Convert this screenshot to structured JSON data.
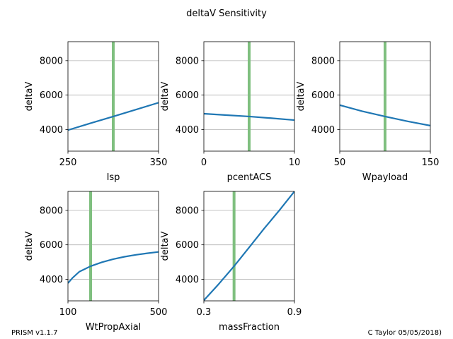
{
  "figure": {
    "title": "deltaV Sensitivity",
    "footer_left": "PRISM v1.1.7",
    "footer_right": "C Taylor 05/05/2018)"
  },
  "colors": {
    "line": "#1f77b4",
    "marker": "#7fbf7f",
    "grid": "#b0b0b0"
  },
  "chart_data": [
    {
      "type": "line",
      "xlabel": "Isp",
      "ylabel": "deltaV",
      "xlim": [
        250,
        350
      ],
      "ylim": [
        2750,
        9100
      ],
      "xticks": [
        "250",
        "350"
      ],
      "yticks": [
        "4000",
        "6000",
        "8000"
      ],
      "grid": "y",
      "marker_x": 300,
      "x": [
        250,
        275,
        300,
        325,
        350
      ],
      "y": [
        3970,
        4370,
        4760,
        5160,
        5560
      ]
    },
    {
      "type": "line",
      "xlabel": "pcentACS",
      "ylabel": "deltaV",
      "xlim": [
        0,
        10
      ],
      "ylim": [
        2750,
        9100
      ],
      "xticks": [
        "0",
        "10"
      ],
      "yticks": [
        "4000",
        "6000",
        "8000"
      ],
      "grid": "y",
      "marker_x": 5,
      "x": [
        0,
        2.5,
        5,
        7.5,
        10
      ],
      "y": [
        4920,
        4840,
        4760,
        4660,
        4550
      ]
    },
    {
      "type": "line",
      "xlabel": "Wpayload",
      "ylabel": "deltaV",
      "xlim": [
        50,
        150
      ],
      "ylim": [
        2750,
        9100
      ],
      "xticks": [
        "50",
        "150"
      ],
      "yticks": [
        "4000",
        "6000",
        "8000"
      ],
      "grid": "y",
      "marker_x": 100,
      "x": [
        50,
        75,
        100,
        125,
        150
      ],
      "y": [
        5420,
        5060,
        4760,
        4480,
        4230
      ]
    },
    {
      "type": "line",
      "xlabel": "WtPropAxial",
      "ylabel": "deltaV",
      "xlim": [
        100,
        500
      ],
      "ylim": [
        2750,
        9100
      ],
      "xticks": [
        "100",
        "500"
      ],
      "yticks": [
        "4000",
        "6000",
        "8000"
      ],
      "grid": "y",
      "marker_x": 200,
      "x": [
        100,
        120,
        150,
        200,
        250,
        300,
        350,
        400,
        450,
        500
      ],
      "y": [
        3780,
        4080,
        4440,
        4760,
        4990,
        5170,
        5310,
        5420,
        5510,
        5590
      ]
    },
    {
      "type": "line",
      "xlabel": "massFraction",
      "ylabel": "deltaV",
      "xlim": [
        0.3,
        0.9
      ],
      "ylim": [
        2750,
        9100
      ],
      "xticks": [
        "0.3",
        "0.9"
      ],
      "yticks": [
        "4000",
        "6000",
        "8000"
      ],
      "grid": "y",
      "marker_x": 0.5,
      "x": [
        0.3,
        0.4,
        0.5,
        0.6,
        0.7,
        0.8,
        0.9
      ],
      "y": [
        2780,
        3740,
        4760,
        5850,
        6950,
        8000,
        9100
      ]
    }
  ]
}
